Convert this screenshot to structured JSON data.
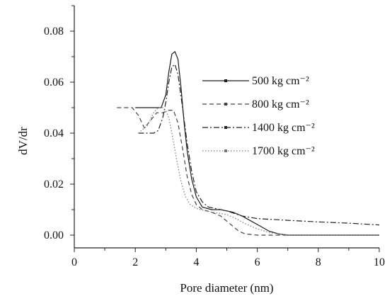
{
  "chart_data": {
    "type": "line",
    "title": "",
    "xlabel": "Pore diameter (nm)",
    "ylabel": "dV/dr",
    "xlim": [
      0,
      10
    ],
    "ylim": [
      -0.005,
      0.09
    ],
    "xticks": [
      "0",
      "2",
      "4",
      "6",
      "8",
      "10"
    ],
    "yticks": [
      "0.00",
      "0.02",
      "0.04",
      "0.06",
      "0.08"
    ],
    "grid": false,
    "legend_position": "right",
    "series": [
      {
        "name": "500 kg cm⁻²",
        "style": "solid",
        "color": "#1a1a1a",
        "x": [
          2.0,
          2.85,
          3.0,
          3.1,
          3.2,
          3.3,
          3.4,
          3.5,
          3.6,
          3.7,
          3.85,
          4.0,
          4.2,
          4.5,
          4.8,
          5.0,
          5.2,
          5.5,
          5.8,
          6.1,
          6.4,
          6.7,
          7.0,
          7.5,
          8.0,
          9.0,
          10.0
        ],
        "y": [
          0.05,
          0.05,
          0.055,
          0.064,
          0.071,
          0.072,
          0.069,
          0.058,
          0.044,
          0.033,
          0.022,
          0.015,
          0.011,
          0.01,
          0.01,
          0.0095,
          0.009,
          0.0075,
          0.0055,
          0.0035,
          0.0015,
          0.0005,
          0.0,
          0.0,
          0.0,
          0.0,
          0.0
        ]
      },
      {
        "name": "800 kg cm⁻²",
        "style": "dashed",
        "color": "#444444",
        "x": [
          1.4,
          1.9,
          2.1,
          2.3,
          2.5,
          2.7,
          2.9,
          3.1,
          3.25,
          3.4,
          3.55,
          3.7,
          3.85,
          4.0,
          4.2,
          4.5,
          4.8,
          5.0,
          5.2,
          5.4,
          5.6,
          6.0,
          7.0,
          8.0,
          10.0
        ],
        "y": [
          0.05,
          0.05,
          0.047,
          0.042,
          0.045,
          0.048,
          0.048,
          0.049,
          0.049,
          0.044,
          0.034,
          0.023,
          0.016,
          0.012,
          0.01,
          0.009,
          0.0075,
          0.0055,
          0.0035,
          0.0015,
          0.0005,
          0.0,
          0.0,
          0.0,
          0.0
        ]
      },
      {
        "name": "1400 kg cm⁻²",
        "style": "dashdot",
        "color": "#222222",
        "x": [
          2.1,
          2.4,
          2.6,
          2.75,
          2.9,
          3.0,
          3.1,
          3.2,
          3.3,
          3.4,
          3.55,
          3.7,
          3.85,
          4.0,
          4.2,
          4.4,
          4.6,
          5.0,
          5.5,
          6.0,
          7.0,
          8.0,
          9.0,
          10.0
        ],
        "y": [
          0.04,
          0.04,
          0.04,
          0.041,
          0.046,
          0.052,
          0.06,
          0.066,
          0.067,
          0.063,
          0.05,
          0.036,
          0.025,
          0.017,
          0.013,
          0.011,
          0.0105,
          0.0095,
          0.0075,
          0.0065,
          0.0058,
          0.0052,
          0.0047,
          0.004
        ]
      },
      {
        "name": "1700 kg cm⁻²",
        "style": "dotted",
        "color": "#777777",
        "x": [
          2.1,
          2.4,
          2.6,
          2.75,
          2.9,
          3.0,
          3.1,
          3.2,
          3.35,
          3.5,
          3.65,
          3.8,
          4.0,
          4.2,
          4.5,
          4.8,
          5.0,
          5.3,
          5.6,
          6.0,
          6.4,
          6.8,
          7.0,
          8.0,
          10.0
        ],
        "y": [
          0.04,
          0.043,
          0.048,
          0.05,
          0.05,
          0.049,
          0.046,
          0.04,
          0.03,
          0.021,
          0.015,
          0.012,
          0.0105,
          0.0098,
          0.009,
          0.0085,
          0.008,
          0.0065,
          0.0045,
          0.0025,
          0.001,
          0.0003,
          0.0,
          0.0,
          0.0
        ]
      }
    ]
  }
}
